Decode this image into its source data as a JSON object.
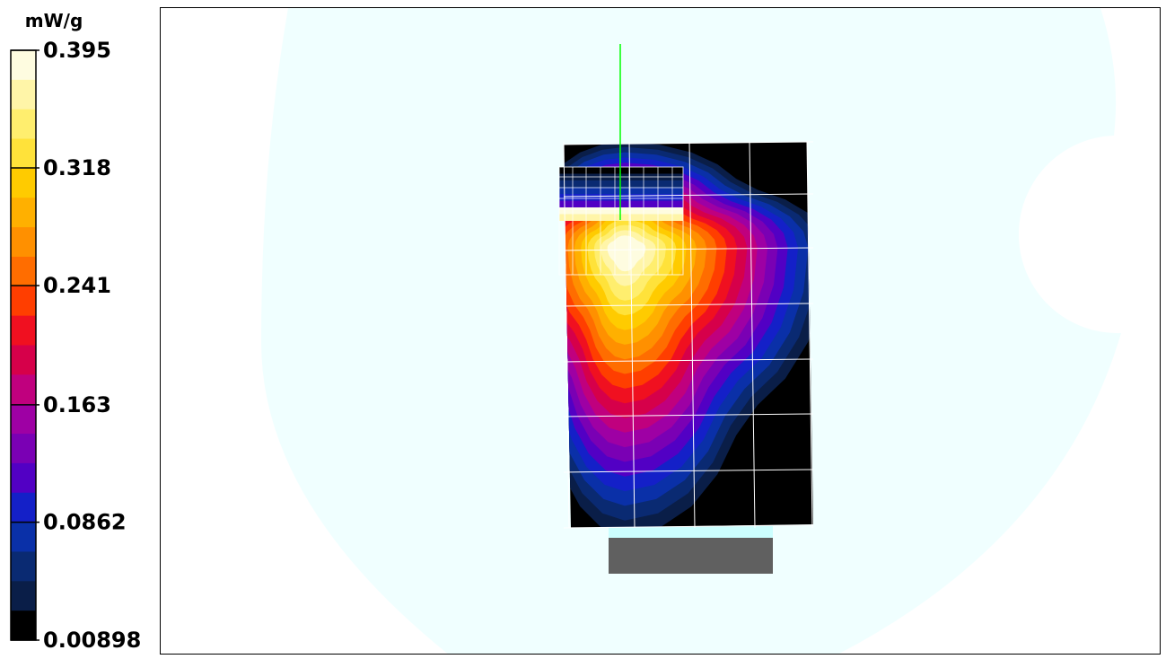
{
  "chart_data": {
    "type": "heatmap",
    "title": "",
    "colorbar": {
      "unit": "mW/g",
      "min": 0.00898,
      "max": 0.395,
      "tick_labels": [
        "0.395",
        "0.318",
        "0.241",
        "0.163",
        "0.0862",
        "0.00898"
      ],
      "tick_values": [
        0.395,
        0.318,
        0.241,
        0.163,
        0.0862,
        0.00898
      ],
      "colors": [
        "#fefce0",
        "#fff5a8",
        "#ffee6e",
        "#ffe23a",
        "#ffcb00",
        "#ffb000",
        "#ff9000",
        "#ff6d00",
        "#ff3e00",
        "#f01020",
        "#d6004a",
        "#c0007e",
        "#9e00a4",
        "#7a00b4",
        "#5200c4",
        "#1420c8",
        "#0a30a8",
        "#0a2a72",
        "#0a1e48",
        "#000000"
      ]
    },
    "sar_distribution": {
      "peak_level": 0.395,
      "peak_location": "upper-left",
      "background_level": 0.00898
    },
    "colors": {
      "phantom_outline": "#f0ffff",
      "probe_line": "#00ff00",
      "device_base_top": "#ccffff",
      "device_base": "#606060",
      "grid_lines": "#ffffff"
    }
  }
}
